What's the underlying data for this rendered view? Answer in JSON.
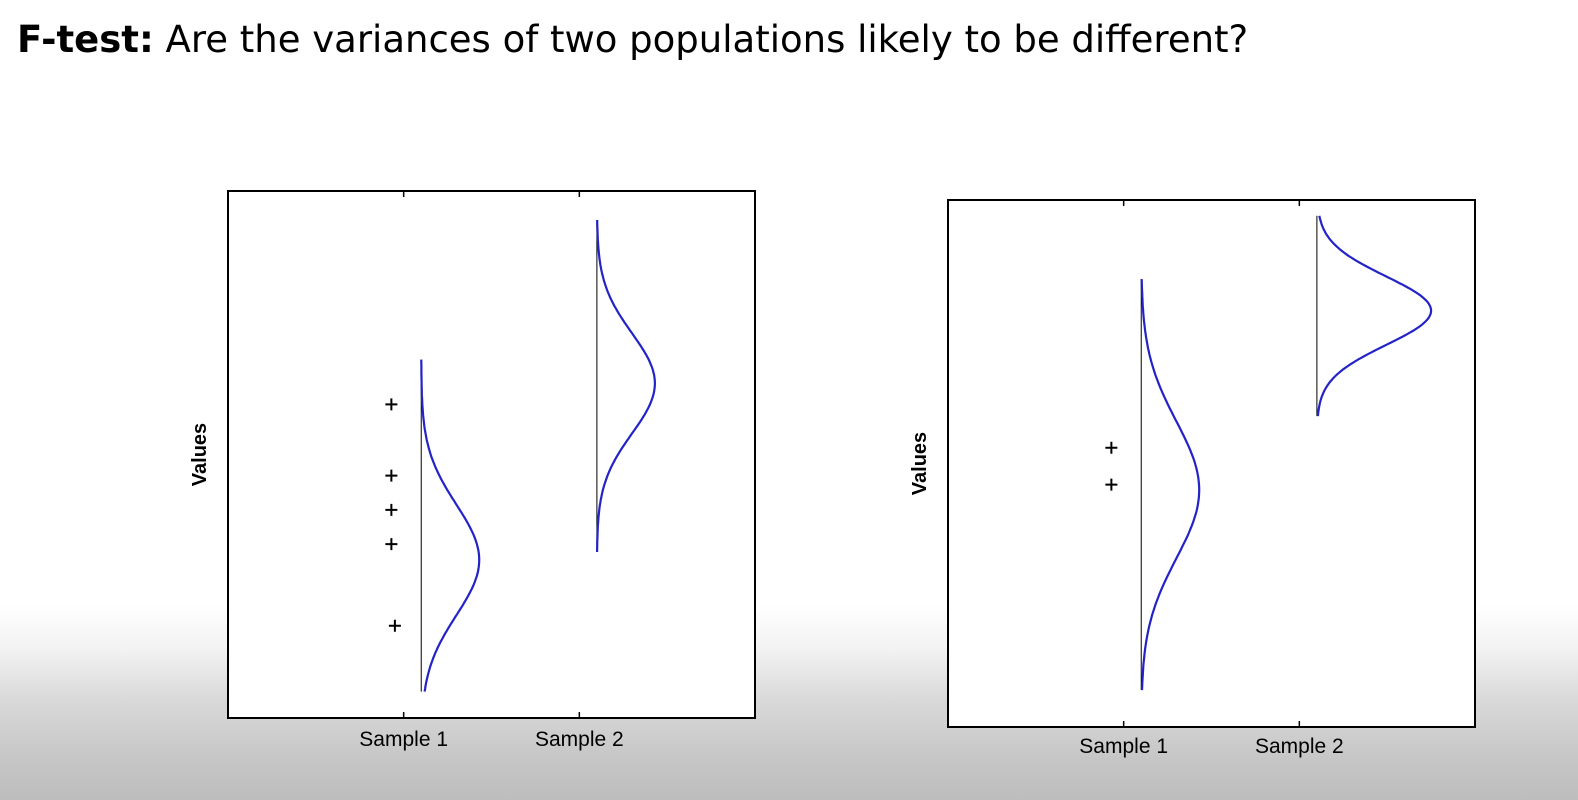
{
  "slide": {
    "title_bold": "F-test:",
    "title_rest": " Are the variances of two populations likely to be different?"
  },
  "colors": {
    "curve": "#2323c8",
    "axis": "#000000",
    "background": "#ffffff"
  },
  "chart_data": [
    {
      "type": "line",
      "ylabel": "Values",
      "xlabel": "",
      "categories": [
        "Sample 1",
        "Sample 2"
      ],
      "grid": false,
      "legend": "none",
      "x_lim": [
        0,
        3
      ],
      "y_lim": [
        0,
        10
      ],
      "curves": [
        {
          "category": "Sample 1",
          "x": 1.1,
          "mean": 3.0,
          "sd": 1.05,
          "ymin": 0.5,
          "ymax": 6.8,
          "amplitude": 0.33
        },
        {
          "category": "Sample 2",
          "x": 1.1,
          "mean": 6.35,
          "sd": 0.95,
          "ymin": 3.15,
          "ymax": 9.45,
          "amplitude": 0.33
        }
      ],
      "observations": [
        {
          "x": 0.93,
          "y": 5.95
        },
        {
          "x": 0.93,
          "y": 4.6
        },
        {
          "x": 0.93,
          "y": 3.95
        },
        {
          "x": 0.93,
          "y": 3.3
        },
        {
          "x": 0.95,
          "y": 1.75
        }
      ]
    },
    {
      "type": "line",
      "ylabel": "Values",
      "xlabel": "",
      "categories": [
        "Sample 1",
        "Sample 2"
      ],
      "grid": false,
      "legend": "none",
      "x_lim": [
        0,
        3
      ],
      "y_lim": [
        0,
        10
      ],
      "curves": [
        {
          "category": "Sample 1",
          "x": 1.1,
          "mean": 4.5,
          "sd": 1.3,
          "ymin": 0.7,
          "ymax": 8.5,
          "amplitude": 0.33
        },
        {
          "category": "Sample 2",
          "x": 1.1,
          "mean": 7.9,
          "sd": 0.65,
          "ymin": 5.9,
          "ymax": 9.7,
          "amplitude": 0.65
        }
      ],
      "observations": [
        {
          "x": 0.93,
          "y": 5.3
        },
        {
          "x": 0.93,
          "y": 4.6
        }
      ]
    }
  ]
}
